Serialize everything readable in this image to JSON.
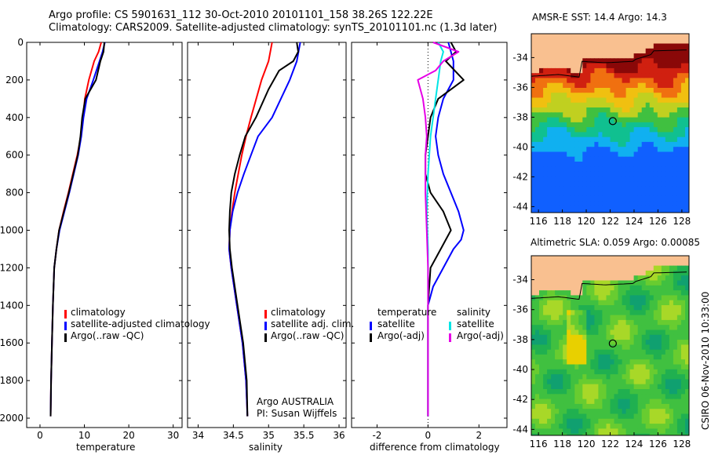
{
  "title_line1": "Argo profile: CS 5901631_112 30-Oct-2010 20101101_158 38.26S 122.22E",
  "title_line2": "Climatology: CARS2009. Satellite-adjusted climatology: synTS_20101101.nc (1.3d later)",
  "side_label": "CSIRO 06-Nov-2010 10:33:00",
  "credit": {
    "line1": "Argo AUSTRALIA",
    "line2": "PI: Susan Wijffels"
  },
  "colors": {
    "climatology": "#ff0000",
    "satellite": "#0000ff",
    "argo": "#000000",
    "sal_satellite": "#00e5e5",
    "sal_argo": "#e600e6",
    "land": "#f9c090"
  },
  "chart_data": [
    {
      "type": "line",
      "id": "temperature",
      "xlabel": "temperature",
      "ylabel": "",
      "xlim": [
        -3,
        32
      ],
      "ylim": [
        2050,
        0
      ],
      "x_ticks": [
        0,
        10,
        20,
        30
      ],
      "y_ticks": [
        0,
        200,
        400,
        600,
        800,
        1000,
        1200,
        1400,
        1600,
        1800,
        2000
      ],
      "legend": [
        "climatology",
        "satellite-adjusted climatology",
        "Argo(..raw -QC)"
      ],
      "series": [
        {
          "name": "climatology",
          "color": "#ff0000",
          "x": [
            13.8,
            13.2,
            12.2,
            11.0,
            10.1,
            9.7,
            9.2,
            8.4,
            7.4,
            6.4,
            5.3,
            4.3,
            3.7,
            3.2,
            2.9,
            2.7,
            2.5,
            2.4
          ],
          "y": [
            0,
            50,
            100,
            200,
            300,
            400,
            500,
            600,
            700,
            800,
            900,
            1000,
            1100,
            1200,
            1400,
            1600,
            1800,
            1990
          ]
        },
        {
          "name": "satellite-adjusted climatology",
          "color": "#0000ff",
          "x": [
            14.6,
            14.1,
            13.4,
            12.0,
            10.5,
            9.8,
            9.3,
            8.6,
            7.6,
            6.6,
            5.5,
            4.4,
            3.7,
            3.2,
            2.9,
            2.7,
            2.5,
            2.4
          ],
          "y": [
            0,
            50,
            100,
            200,
            300,
            400,
            500,
            600,
            700,
            800,
            900,
            1000,
            1100,
            1200,
            1400,
            1600,
            1800,
            1990
          ]
        },
        {
          "name": "Argo(..raw -QC)",
          "color": "#000000",
          "x": [
            14.5,
            14.3,
            13.6,
            12.6,
            10.2,
            9.5,
            9.1,
            8.5,
            7.5,
            6.5,
            5.4,
            4.3,
            3.7,
            3.2,
            2.9,
            2.7,
            2.5,
            2.4
          ],
          "y": [
            0,
            50,
            100,
            200,
            300,
            400,
            500,
            600,
            700,
            800,
            900,
            1000,
            1100,
            1200,
            1400,
            1600,
            1800,
            1990
          ]
        }
      ]
    },
    {
      "type": "line",
      "id": "salinity",
      "xlabel": "salinity",
      "ylabel": "",
      "xlim": [
        33.85,
        36.1
      ],
      "ylim": [
        2050,
        0
      ],
      "x_ticks": [
        34,
        34.5,
        35,
        35.5,
        36
      ],
      "legend": [
        "climatology",
        "satellite adj. clim.",
        "Argo(..raw -QC)"
      ],
      "series": [
        {
          "name": "climatology",
          "color": "#ff0000",
          "x": [
            35.05,
            35.0,
            34.9,
            34.75,
            34.68,
            34.62,
            34.57,
            34.52,
            34.48,
            34.45,
            34.44,
            34.47,
            34.55,
            34.63,
            34.68,
            34.7
          ],
          "y": [
            0,
            100,
            200,
            400,
            500,
            600,
            700,
            800,
            900,
            1000,
            1100,
            1200,
            1400,
            1600,
            1800,
            1990
          ]
        },
        {
          "name": "satellite adj. clim.",
          "color": "#0000ff",
          "x": [
            35.45,
            35.4,
            35.3,
            35.05,
            34.85,
            34.75,
            34.65,
            34.56,
            34.49,
            34.45,
            34.44,
            34.47,
            34.55,
            34.63,
            34.68,
            34.7
          ],
          "y": [
            0,
            100,
            200,
            400,
            500,
            600,
            700,
            800,
            900,
            1000,
            1100,
            1200,
            1400,
            1600,
            1800,
            1990
          ]
        },
        {
          "name": "Argo(..raw -QC)",
          "color": "#000000",
          "x": [
            35.4,
            35.42,
            35.35,
            35.15,
            35.0,
            34.82,
            34.67,
            34.59,
            34.52,
            34.47,
            34.45,
            34.44,
            34.45,
            34.48,
            34.56,
            34.64,
            34.69,
            34.7
          ],
          "y": [
            0,
            50,
            100,
            150,
            250,
            400,
            500,
            600,
            700,
            800,
            900,
            1000,
            1100,
            1200,
            1400,
            1600,
            1800,
            1990
          ]
        }
      ]
    },
    {
      "type": "line",
      "id": "difference",
      "xlabel": "difference from climatology",
      "ylabel": "",
      "xlim": [
        -3,
        3.1
      ],
      "ylim": [
        2050,
        0
      ],
      "x_ticks": [
        -2,
        0,
        2
      ],
      "legend_headers": [
        "temperature",
        "salinity"
      ],
      "legend": [
        "satellite",
        "Argo(-adj)",
        "satellite",
        "Argo(-adj)"
      ],
      "series": [
        {
          "name": "temperature satellite",
          "color": "#0000ff",
          "x": [
            0.8,
            0.9,
            1.0,
            1.0,
            0.6,
            0.4,
            0.3,
            0.4,
            0.6,
            0.9,
            1.2,
            1.4,
            1.3,
            1.0,
            0.6,
            0.2,
            0.0,
            0.0
          ],
          "y": [
            0,
            50,
            100,
            200,
            300,
            400,
            500,
            600,
            700,
            800,
            900,
            1000,
            1050,
            1100,
            1200,
            1300,
            1400,
            1990
          ]
        },
        {
          "name": "temperature Argo(-adj)",
          "color": "#000000",
          "x": [
            0.9,
            1.1,
            0.7,
            1.4,
            0.4,
            0.1,
            0.0,
            -0.1,
            -0.1,
            0.1,
            0.6,
            0.9,
            0.5,
            0.1,
            0.0,
            0.0,
            0.0
          ],
          "y": [
            0,
            50,
            100,
            200,
            300,
            400,
            500,
            600,
            700,
            800,
            900,
            1000,
            1100,
            1200,
            1400,
            1600,
            1990
          ]
        },
        {
          "name": "salinity satellite",
          "color": "#00e5e5",
          "x": [
            0.4,
            0.6,
            0.5,
            0.4,
            0.3,
            0.2,
            0.1,
            0.0,
            -0.05,
            0.0,
            0.0,
            0.0
          ],
          "y": [
            0,
            50,
            100,
            200,
            300,
            400,
            500,
            700,
            900,
            1100,
            1500,
            1990
          ]
        },
        {
          "name": "salinity Argo(-adj)",
          "color": "#e600e6",
          "x": [
            0.2,
            1.2,
            0.6,
            0.3,
            -0.4,
            -0.2,
            -0.1,
            -0.05,
            -0.1,
            -0.1,
            -0.05,
            0.0,
            0.0,
            0.0
          ],
          "y": [
            0,
            50,
            100,
            150,
            200,
            300,
            400,
            500,
            600,
            800,
            1000,
            1200,
            1500,
            1990
          ]
        }
      ]
    },
    {
      "type": "heatmap",
      "id": "sst_map",
      "title": "AMSR-E SST: 14.4 Argo: 14.3",
      "xlim": [
        115.4,
        128.6
      ],
      "ylim": [
        -44.4,
        -32.4
      ],
      "x_ticks": [
        116,
        118,
        120,
        122,
        124,
        126,
        128
      ],
      "y_ticks": [
        -34,
        -36,
        -38,
        -40,
        -42,
        -44
      ],
      "marker": {
        "lon": 122.22,
        "lat": -38.26
      }
    },
    {
      "type": "heatmap",
      "id": "sla_map",
      "title": "Altimetric SLA: 0.059 Argo: 0.00085",
      "xlim": [
        115.4,
        128.6
      ],
      "ylim": [
        -44.4,
        -32.4
      ],
      "x_ticks": [
        116,
        118,
        120,
        122,
        124,
        126,
        128
      ],
      "y_ticks": [
        -34,
        -36,
        -38,
        -40,
        -42,
        -44
      ],
      "marker": {
        "lon": 122.22,
        "lat": -38.26
      }
    }
  ]
}
